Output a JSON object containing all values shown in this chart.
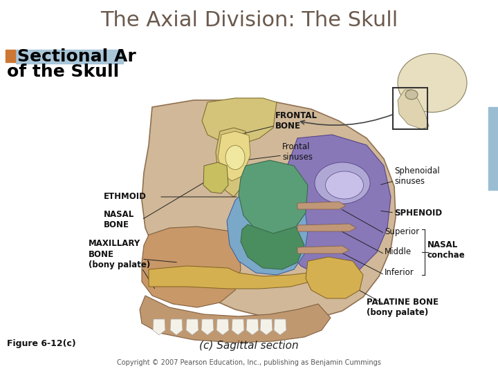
{
  "title": "The Axial Division: The Skull",
  "title_color": "#6b5a4e",
  "title_fontsize": 22,
  "bg_color": "#ffffff",
  "orange_box_color": "#cc7733",
  "blue_highlight_color": "#9bbdd4",
  "right_bar_color": "#9bbdd4",
  "subtitle_fontsize": 18,
  "subtitle_color": "#000000",
  "figure_label": "Figure 6-12(c)",
  "figure_label_fontsize": 9,
  "caption": "(c) Sagittal section",
  "caption_fontsize": 11,
  "copyright": "Copyright © 2007 Pearson Education, Inc., publishing as Benjamin Cummings",
  "copyright_fontsize": 7,
  "label_fontsize": 8,
  "colors": {
    "frontal_bone": "#d4c47a",
    "frontal_sinus": "#e8d888",
    "ethmoid": "#5a9e78",
    "nasal_bone": "#c8c060",
    "sphenoid": "#8878b8",
    "sphenoid_sinus": "#b0a8d4",
    "maxillary": "#c89868",
    "palate_floor": "#c8a878",
    "blue_airway": "#7aA8c8",
    "mandible": "#c8a070",
    "teeth": "#f4f2e8",
    "palatine": "#d4b050",
    "skull_bg": "#d0b898",
    "nasal_cavity_bg": "#c09080"
  }
}
